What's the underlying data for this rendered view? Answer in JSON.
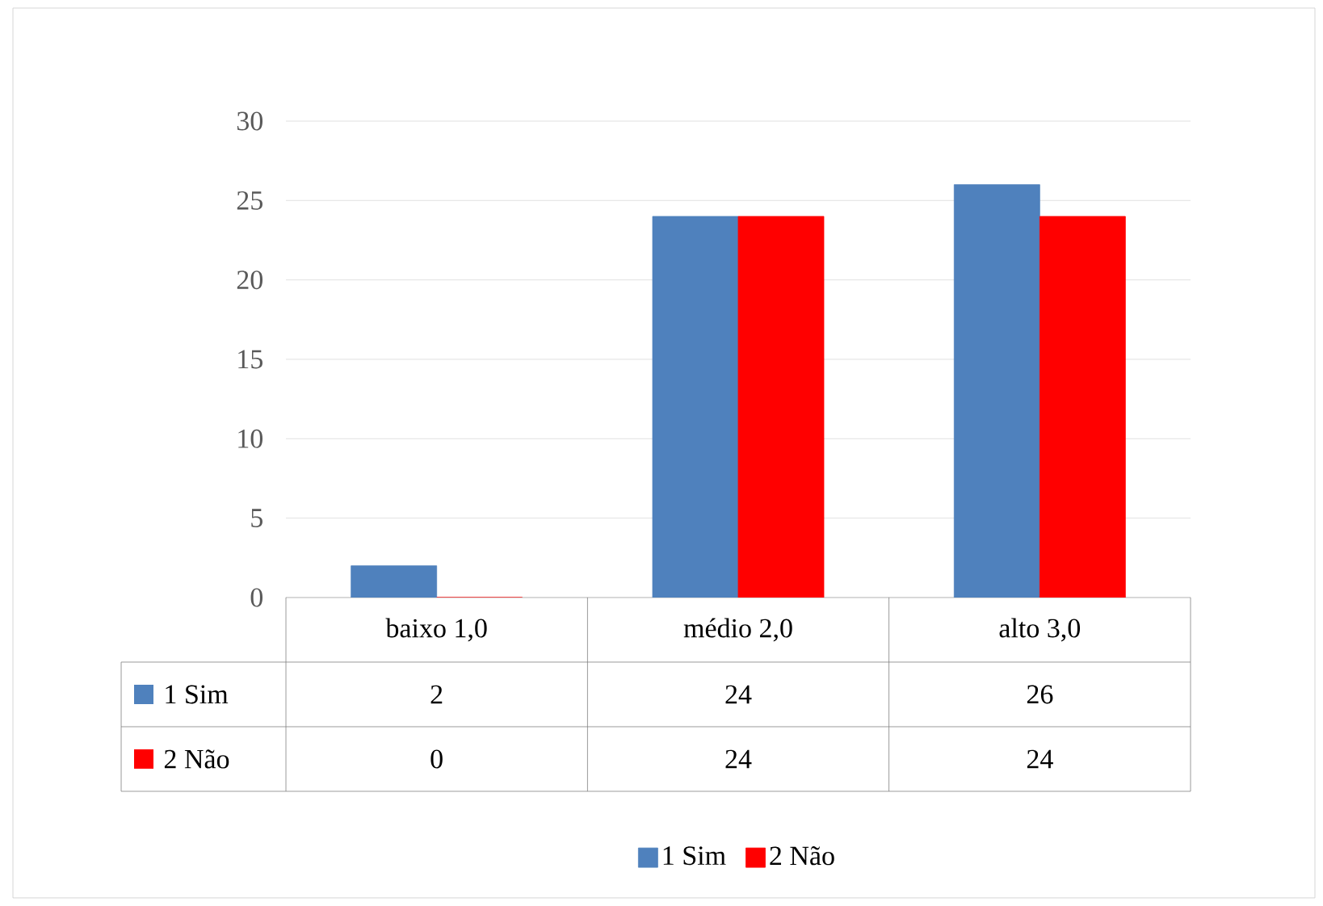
{
  "chart_data": {
    "type": "bar",
    "categories": [
      "baixo 1,0",
      "médio 2,0",
      "alto 3,0"
    ],
    "series": [
      {
        "name": "1 Sim",
        "color": "#4f81bd",
        "values": [
          2,
          24,
          26
        ]
      },
      {
        "name": "2 Não",
        "color": "#ff0000",
        "values": [
          0,
          24,
          24
        ]
      }
    ],
    "ylim": [
      0,
      30
    ],
    "yticks": [
      0,
      5,
      10,
      15,
      20,
      25,
      30
    ],
    "grid": "y",
    "legend": "bottom",
    "data_labels": true
  }
}
